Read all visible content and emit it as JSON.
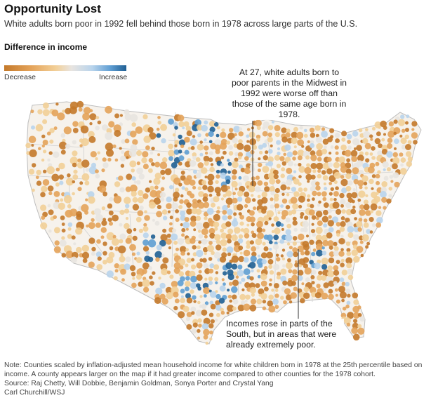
{
  "title": "Opportunity Lost",
  "subtitle": "White adults born poor in 1992 fell behind those born in 1978 across large parts of the U.S.",
  "legend": {
    "title": "Difference in income",
    "left_label": "Decrease",
    "right_label": "Increase",
    "colors": [
      "#c4792a",
      "#e4a35a",
      "#f2cf97",
      "#e8e4e0",
      "#b9d4ec",
      "#5f9ed3",
      "#1f5f93"
    ]
  },
  "annotations": {
    "midwest": "At 27, white adults born to poor parents in the Midwest in 1992 were worse off than those of the same age born in 1978.",
    "south": "Incomes rose in parts of the South, but in areas that were already extremely poor."
  },
  "note": {
    "text": "Note: Counties scaled by inflation-adjusted mean household income for white children born in 1978 at the 25th percentile based on income. A county appears larger on the map if it had greater income compared to other counties for the 1978 cohort.",
    "source": "Source:  Raj Chetty, Will Dobbie, Benjamin Goldman, Sonya Porter and Crystal Yang",
    "credit": "Carl Churchill/WSJ"
  }
}
